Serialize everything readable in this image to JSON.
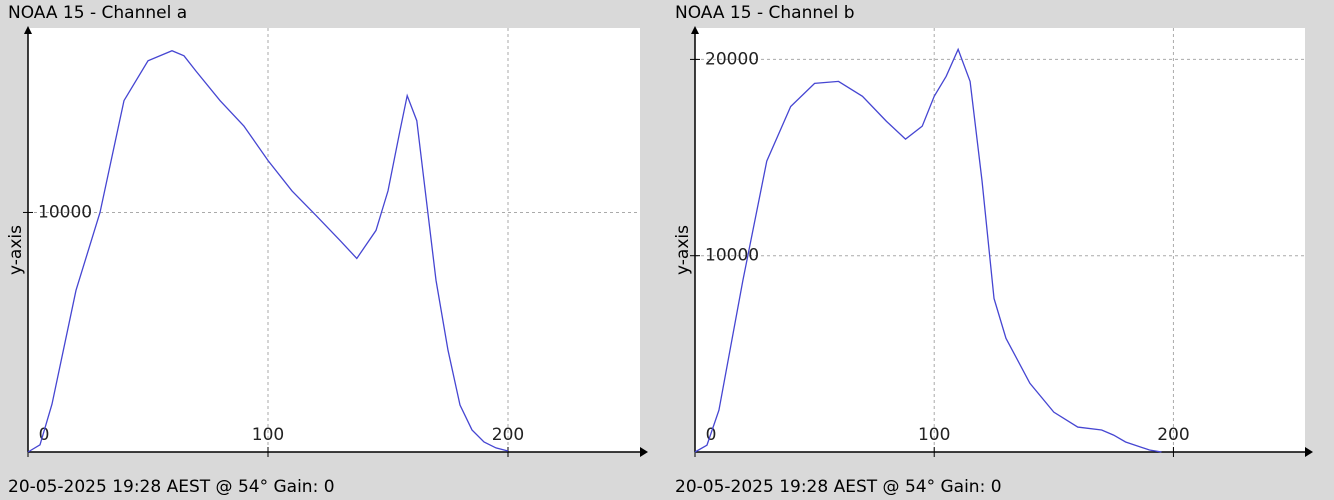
{
  "chart_data": [
    {
      "type": "line",
      "title": "NOAA 15 - Channel a",
      "y_label": "y-axis",
      "footer": "20-05-2025 19:28 AEST @ 54° Gain: 0",
      "x": [
        0,
        5,
        10,
        20,
        30,
        40,
        50,
        60,
        65,
        70,
        80,
        90,
        100,
        110,
        120,
        130,
        137,
        145,
        150,
        155,
        158,
        162,
        165,
        170,
        175,
        180,
        185,
        190,
        195,
        200
      ],
      "series": [
        {
          "color": "#4646d2",
          "values": [
            0,
            300,
            2000,
            6750,
            10000,
            14670,
            16330,
            16750,
            16540,
            15900,
            14670,
            13600,
            12170,
            10900,
            9875,
            8830,
            8080,
            9250,
            10900,
            13420,
            14875,
            13830,
            11330,
            7170,
            4250,
            1960,
            920,
            420,
            170,
            40
          ]
        }
      ],
      "xlim": [
        0,
        255
      ],
      "ylim": [
        0,
        17700
      ],
      "xticks": [
        0,
        100,
        200
      ],
      "yticks": [
        10000
      ],
      "grid": true
    },
    {
      "type": "line",
      "title": "NOAA 15 - Channel b",
      "y_label": "y-axis",
      "footer": "20-05-2025 19:28 AEST @ 54° Gain: 0",
      "x": [
        0,
        5,
        10,
        20,
        30,
        40,
        50,
        60,
        70,
        80,
        88,
        95,
        100,
        105,
        110,
        115,
        120,
        125,
        130,
        140,
        150,
        160,
        170,
        175,
        180,
        190,
        195
      ],
      "series": [
        {
          "color": "#4646d2",
          "values": [
            0,
            350,
            2130,
            8730,
            14820,
            17600,
            18780,
            18880,
            18120,
            16850,
            15940,
            16600,
            18120,
            19140,
            20510,
            18880,
            13800,
            7820,
            5790,
            3500,
            2030,
            1270,
            1120,
            860,
            510,
            100,
            0
          ]
        }
      ],
      "xlim": [
        0,
        255
      ],
      "ylim": [
        0,
        21600
      ],
      "xticks": [
        0,
        100,
        200
      ],
      "yticks": [
        10000,
        20000
      ],
      "grid": true
    }
  ]
}
